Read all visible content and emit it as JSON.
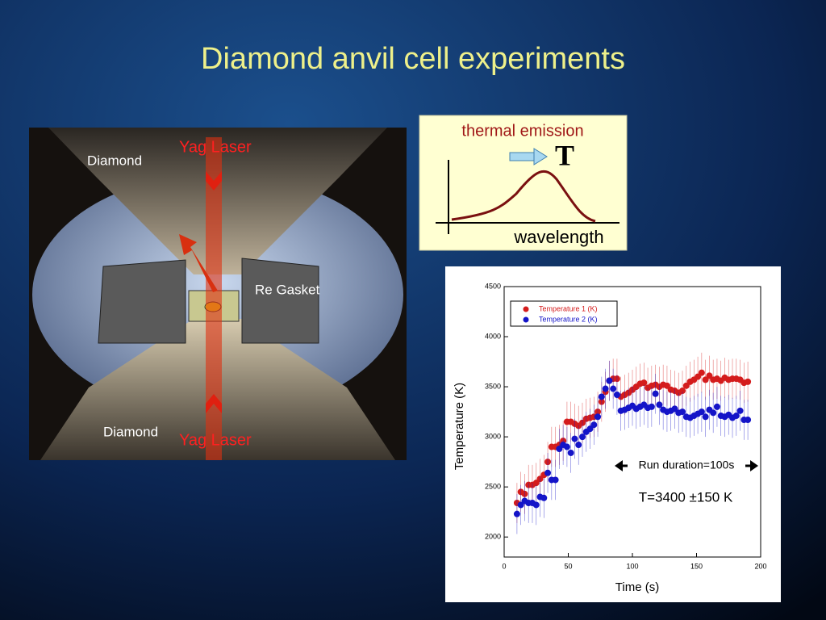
{
  "title": "Diamond anvil cell experiments",
  "photo": {
    "labels": [
      "Diamond",
      "Yag Laser",
      "Re Gasket",
      "Diamond",
      "Yag Laser"
    ]
  },
  "diagram": {
    "title": "thermal emission",
    "symbol": "T",
    "axis_label": "wavelength"
  },
  "chart_data": {
    "type": "scatter",
    "x": [
      10,
      13,
      16,
      19,
      22,
      25,
      28,
      31,
      34,
      37,
      40,
      43,
      46,
      49,
      52,
      55,
      58,
      61,
      64,
      67,
      70,
      73,
      76,
      79,
      82,
      85,
      88,
      91,
      94,
      97,
      100,
      103,
      106,
      109,
      112,
      115,
      118,
      121,
      124,
      127,
      130,
      133,
      136,
      139,
      142,
      145,
      148,
      151,
      154,
      157,
      160,
      163,
      166,
      169,
      172,
      175,
      178,
      181,
      184,
      187,
      190
    ],
    "series": [
      {
        "name": "Temperature 1 (K)",
        "color": "#d41c1c",
        "error": 200,
        "values": [
          2340,
          2450,
          2430,
          2520,
          2520,
          2540,
          2580,
          2620,
          2750,
          2900,
          2900,
          2920,
          2960,
          3150,
          3150,
          3130,
          3110,
          3140,
          3180,
          3190,
          3200,
          3250,
          3350,
          3450,
          3560,
          3580,
          3580,
          3400,
          3420,
          3440,
          3470,
          3500,
          3530,
          3540,
          3490,
          3510,
          3520,
          3500,
          3520,
          3510,
          3470,
          3460,
          3440,
          3460,
          3510,
          3550,
          3570,
          3600,
          3640,
          3570,
          3610,
          3570,
          3580,
          3560,
          3590,
          3570,
          3580,
          3580,
          3570,
          3540,
          3550
        ]
      },
      {
        "name": "Temperature 2  (K)",
        "color": "#1414c8",
        "error": 200,
        "values": [
          2230,
          2320,
          2360,
          2340,
          2340,
          2320,
          2400,
          2390,
          2640,
          2570,
          2570,
          2880,
          2920,
          2900,
          2840,
          2980,
          2920,
          3000,
          3050,
          3080,
          3120,
          3200,
          3400,
          3480,
          3560,
          3480,
          3420,
          3260,
          3270,
          3290,
          3310,
          3280,
          3300,
          3320,
          3290,
          3300,
          3430,
          3320,
          3270,
          3250,
          3260,
          3280,
          3240,
          3250,
          3200,
          3190,
          3210,
          3230,
          3250,
          3200,
          3270,
          3240,
          3300,
          3210,
          3200,
          3220,
          3190,
          3210,
          3260,
          3170,
          3170
        ]
      }
    ],
    "xlim": [
      0,
      200
    ],
    "xticks": [
      0,
      50,
      100,
      150,
      200
    ],
    "ylim": [
      1800,
      4500
    ],
    "yticks": [
      2000,
      2500,
      3000,
      3500,
      4000,
      4500
    ],
    "xlabel": "Time (s)",
    "ylabel": "Temperature (K)",
    "legend": "upper left",
    "annotations": [
      "Run duration=100s",
      "T=3400 ±150 K"
    ]
  }
}
